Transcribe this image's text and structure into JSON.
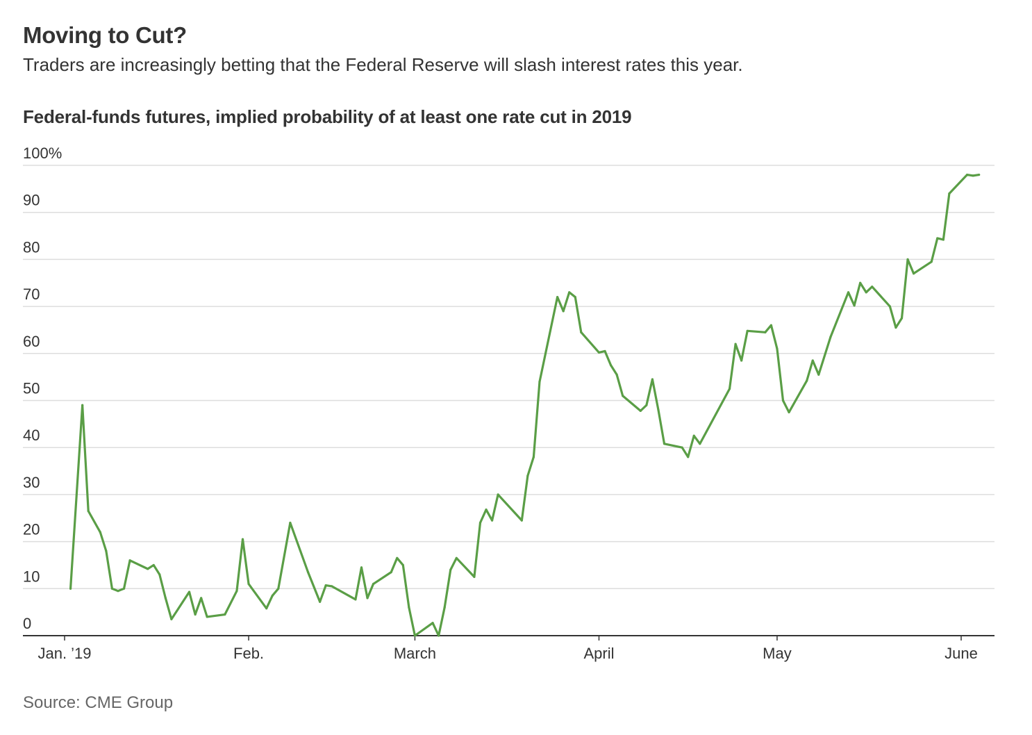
{
  "headline": "Moving to Cut?",
  "dek": "Traders are increasingly betting that the Federal Reserve will slash interest rates this year.",
  "source": "Source: CME Group",
  "colors": {
    "line": "#5a9e46",
    "grid": "#dddddd",
    "axis": "#333333",
    "text": "#333333"
  },
  "chart_data": {
    "type": "line",
    "title": "Federal-funds futures, implied probability of at least one rate cut in 2019",
    "xlabel": "",
    "ylabel": "",
    "ylim": [
      0,
      100
    ],
    "xlim": [
      1,
      162
    ],
    "grid": true,
    "y_ticks": [
      {
        "value": 0,
        "label": "0"
      },
      {
        "value": 10,
        "label": "10"
      },
      {
        "value": 20,
        "label": "20"
      },
      {
        "value": 30,
        "label": "30"
      },
      {
        "value": 40,
        "label": "40"
      },
      {
        "value": 50,
        "label": "50"
      },
      {
        "value": 60,
        "label": "60"
      },
      {
        "value": 70,
        "label": "70"
      },
      {
        "value": 80,
        "label": "80"
      },
      {
        "value": 90,
        "label": "90"
      },
      {
        "value": 100,
        "label": "100%"
      }
    ],
    "x_ticks": [
      {
        "value": 1,
        "label": "Jan. ’19"
      },
      {
        "value": 32,
        "label": "Feb."
      },
      {
        "value": 60,
        "label": "March"
      },
      {
        "value": 91,
        "label": "April"
      },
      {
        "value": 121,
        "label": "May"
      },
      {
        "value": 152,
        "label": "June"
      }
    ],
    "series": [
      {
        "name": "Implied probability of at least one rate cut in 2019",
        "x_unit": "day of year 2019",
        "points": [
          [
            2,
            10
          ],
          [
            4,
            49
          ],
          [
            5,
            26.5
          ],
          [
            7,
            22
          ],
          [
            8,
            18
          ],
          [
            9,
            10
          ],
          [
            10,
            9.5
          ],
          [
            11,
            10
          ],
          [
            12,
            16
          ],
          [
            15,
            14.2
          ],
          [
            16,
            15
          ],
          [
            17,
            13
          ],
          [
            18,
            8
          ],
          [
            19,
            3.5
          ],
          [
            22,
            9.3
          ],
          [
            23,
            4.5
          ],
          [
            24,
            8
          ],
          [
            25,
            4
          ],
          [
            28,
            4.5
          ],
          [
            30,
            9.5
          ],
          [
            31,
            20.5
          ],
          [
            32,
            11
          ],
          [
            35,
            5.8
          ],
          [
            36,
            8.5
          ],
          [
            37,
            10
          ],
          [
            39,
            24
          ],
          [
            42,
            13.5
          ],
          [
            44,
            7.2
          ],
          [
            45,
            10.7
          ],
          [
            46,
            10.5
          ],
          [
            50,
            7.7
          ],
          [
            51,
            14.5
          ],
          [
            52,
            8
          ],
          [
            53,
            11
          ],
          [
            56,
            13.5
          ],
          [
            57,
            16.5
          ],
          [
            58,
            15
          ],
          [
            59,
            6
          ],
          [
            60,
            0
          ],
          [
            63,
            2.7
          ],
          [
            64,
            0
          ],
          [
            65,
            6
          ],
          [
            66,
            14
          ],
          [
            67,
            16.5
          ],
          [
            70,
            12.5
          ],
          [
            71,
            24
          ],
          [
            72,
            26.8
          ],
          [
            73,
            24.5
          ],
          [
            74,
            30
          ],
          [
            78,
            24.5
          ],
          [
            79,
            34
          ],
          [
            80,
            38
          ],
          [
            81,
            54
          ],
          [
            84,
            72
          ],
          [
            85,
            69
          ],
          [
            86,
            73
          ],
          [
            87,
            72
          ],
          [
            88,
            64.5
          ],
          [
            91,
            60.2
          ],
          [
            92,
            60.5
          ],
          [
            93,
            57.5
          ],
          [
            94,
            55.5
          ],
          [
            95,
            51
          ],
          [
            98,
            47.8
          ],
          [
            99,
            49
          ],
          [
            100,
            54.5
          ],
          [
            101,
            48
          ],
          [
            102,
            40.8
          ],
          [
            105,
            40
          ],
          [
            106,
            38
          ],
          [
            107,
            42.5
          ],
          [
            108,
            40.8
          ],
          [
            113,
            52.5
          ],
          [
            114,
            62
          ],
          [
            115,
            58.5
          ],
          [
            116,
            64.8
          ],
          [
            119,
            64.5
          ],
          [
            120,
            66
          ],
          [
            121,
            61
          ],
          [
            122,
            50
          ],
          [
            123,
            47.5
          ],
          [
            126,
            54.2
          ],
          [
            127,
            58.5
          ],
          [
            128,
            55.5
          ],
          [
            130,
            63.5
          ],
          [
            133,
            73
          ],
          [
            134,
            70.2
          ],
          [
            135,
            75
          ],
          [
            136,
            73
          ],
          [
            137,
            74.2
          ],
          [
            140,
            70
          ],
          [
            141,
            65.5
          ],
          [
            142,
            67.5
          ],
          [
            143,
            80
          ],
          [
            144,
            77
          ],
          [
            147,
            79.5
          ],
          [
            148,
            84.5
          ],
          [
            149,
            84.2
          ],
          [
            150,
            94
          ],
          [
            153,
            98
          ],
          [
            154,
            97.8
          ],
          [
            155,
            98
          ]
        ]
      }
    ]
  }
}
